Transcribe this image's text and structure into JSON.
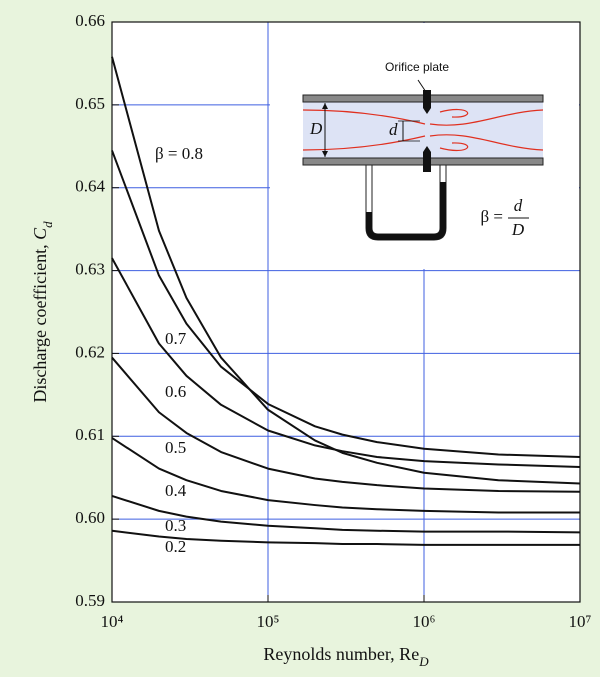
{
  "chart_data": {
    "type": "line",
    "x_label": {
      "text": "Reynolds number, Re",
      "subscript": "D"
    },
    "y_label": {
      "text": "Discharge coefficient, ",
      "symbol": "C",
      "subscript": "d"
    },
    "xscale": "log",
    "xlim": [
      10000,
      10000000
    ],
    "xticks": [
      {
        "value": 10000,
        "label": "10⁴"
      },
      {
        "value": 100000,
        "label": "10⁵"
      },
      {
        "value": 1000000,
        "label": "10⁶"
      },
      {
        "value": 10000000,
        "label": "10⁷"
      }
    ],
    "ylim": [
      0.59,
      0.66
    ],
    "yticks": [
      0.59,
      {
        "value": 0.6,
        "label": "0.60"
      },
      0.61,
      0.62,
      0.63,
      0.64,
      0.65,
      0.66
    ],
    "grid": true,
    "grid_color": "#3f5fe0",
    "x": [
      10000,
      20000,
      30000,
      50000,
      100000,
      200000,
      300000,
      500000,
      1000000,
      3000000,
      10000000
    ],
    "series": [
      {
        "name": "β = 0.8",
        "color": "#111111",
        "values": [
          0.6558,
          0.6348,
          0.6267,
          0.6195,
          0.6132,
          0.6095,
          0.608,
          0.6068,
          0.6056,
          0.6047,
          0.6043
        ]
      },
      {
        "name": "0.7",
        "color": "#111111",
        "values": [
          0.6445,
          0.6294,
          0.6236,
          0.6184,
          0.6139,
          0.6112,
          0.6102,
          0.6093,
          0.6085,
          0.6078,
          0.6075
        ]
      },
      {
        "name": "0.6",
        "color": "#111111",
        "values": [
          0.6315,
          0.6212,
          0.6173,
          0.6138,
          0.6107,
          0.6089,
          0.6082,
          0.6075,
          0.607,
          0.6066,
          0.6063
        ]
      },
      {
        "name": "0.5",
        "color": "#111111",
        "values": [
          0.6195,
          0.6129,
          0.6104,
          0.6081,
          0.6061,
          0.6049,
          0.6045,
          0.6041,
          0.6037,
          0.6034,
          0.6033
        ]
      },
      {
        "name": "0.4",
        "color": "#111111",
        "values": [
          0.6098,
          0.6061,
          0.6047,
          0.6034,
          0.6023,
          0.6017,
          0.6014,
          0.6012,
          0.601,
          0.6008,
          0.6008
        ]
      },
      {
        "name": "0.3",
        "color": "#111111",
        "values": [
          0.6028,
          0.601,
          0.6003,
          0.5997,
          0.5992,
          0.5989,
          0.5987,
          0.5986,
          0.5985,
          0.5985,
          0.5984
        ]
      },
      {
        "name": "0.2",
        "color": "#111111",
        "values": [
          0.5986,
          0.5979,
          0.5976,
          0.5974,
          0.5972,
          0.5971,
          0.597,
          0.597,
          0.5969,
          0.5969,
          0.5969
        ]
      }
    ],
    "inset": {
      "label": "Orifice plate",
      "pipe_diameter": "D",
      "orifice_diameter": "d",
      "beta_formula": {
        "lhs": "β =",
        "numerator": "d",
        "denominator": "D"
      }
    }
  }
}
